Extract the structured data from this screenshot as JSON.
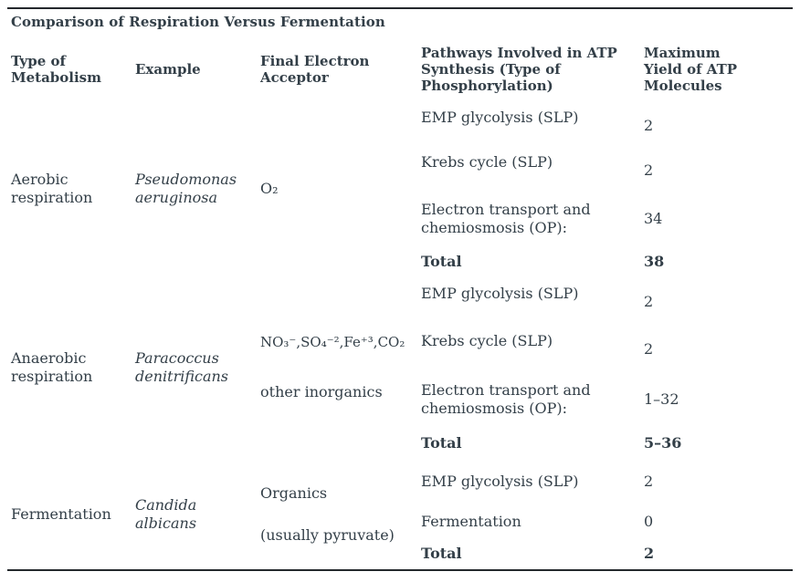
{
  "title": "Comparison of Respiration Versus Fermentation",
  "colors": {
    "text": "#333f48",
    "rule": "#24282c",
    "background": "#ffffff"
  },
  "table": {
    "headers": [
      "Type of Metabolism",
      "Example",
      "Final Electron Acceptor",
      "Pathways Involved in ATP Synthesis (Type of Phosphorylation)",
      "Maximum Yield of ATP Molecules"
    ],
    "groups": [
      {
        "metabolism": "Aerobic respiration",
        "example": "Pseudomonas aeruginosa",
        "acceptor": [
          "O₂"
        ],
        "pathways": [
          {
            "label": "EMP glycolysis (SLP)",
            "value": "2"
          },
          {
            "label": "Krebs cycle (SLP)",
            "value": "2"
          },
          {
            "label": "Electron transport and chemiosmosis (OP):",
            "value": "34"
          },
          {
            "label": "Total",
            "value": "38"
          }
        ]
      },
      {
        "metabolism": "Anaerobic respiration",
        "example": "Paracoccus denitrificans",
        "acceptor": [
          "NO₃⁻,SO₄⁻²,Fe⁺³,CO₂",
          "other inorganics"
        ],
        "pathways": [
          {
            "label": "EMP glycolysis (SLP)",
            "value": "2"
          },
          {
            "label": "Krebs cycle (SLP)",
            "value": "2"
          },
          {
            "label": "Electron transport and chemiosmosis (OP):",
            "value": "1–32"
          },
          {
            "label": "Total",
            "value": "5–36"
          }
        ]
      },
      {
        "metabolism": "Fermentation",
        "example": "Candida albicans",
        "acceptor": [
          "Organics",
          "(usually pyruvate)"
        ],
        "pathways": [
          {
            "label": "EMP glycolysis (SLP)",
            "value": "2"
          },
          {
            "label": "Fermentation",
            "value": "0"
          },
          {
            "label": "Total",
            "value": "2"
          }
        ]
      }
    ]
  }
}
